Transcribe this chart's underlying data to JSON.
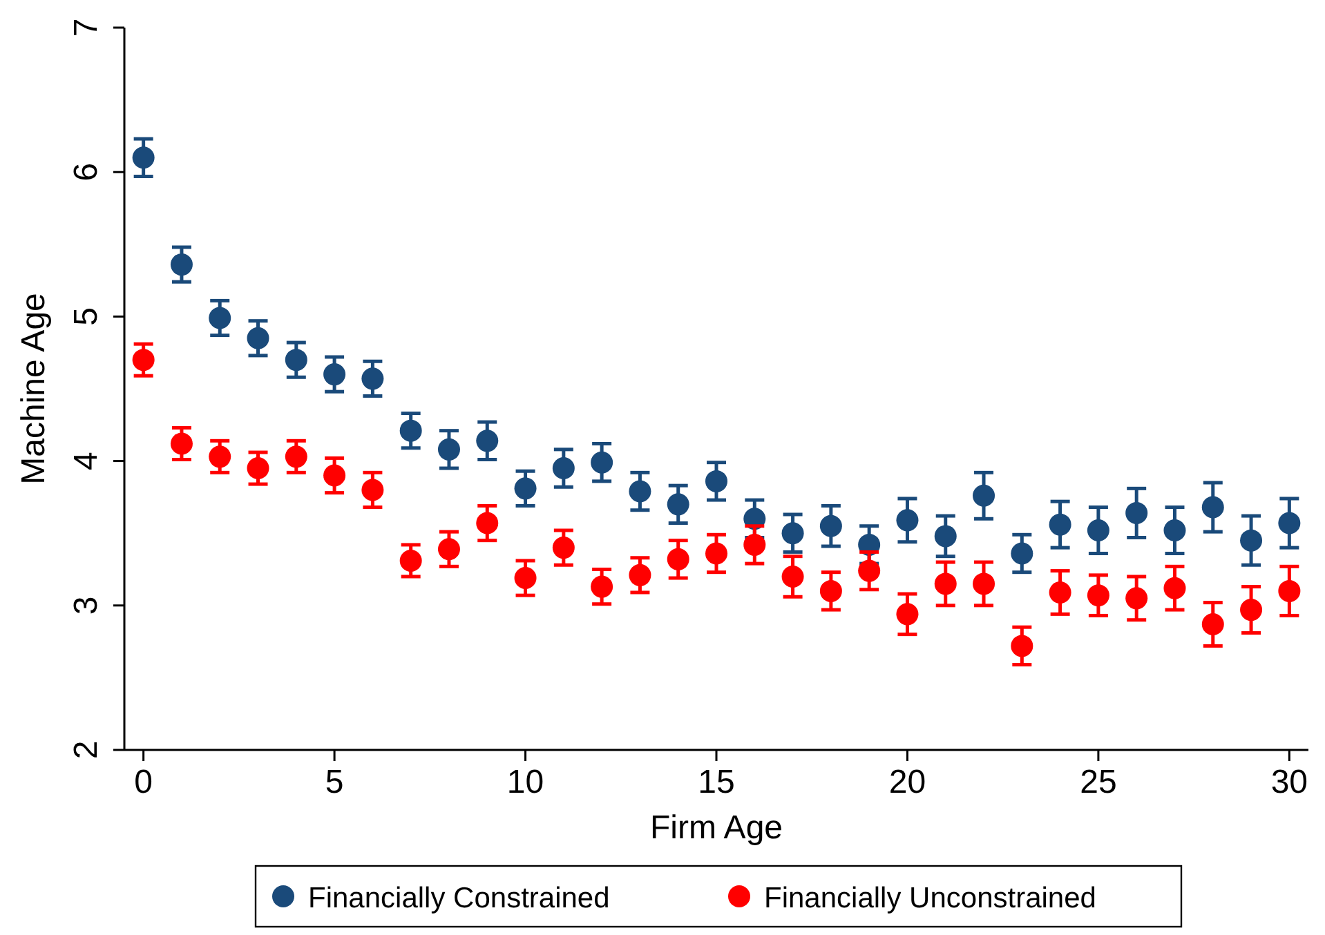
{
  "chart_data": {
    "type": "scatter",
    "xlabel": "Firm Age",
    "ylabel": "Machine Age",
    "x": [
      0,
      1,
      2,
      3,
      4,
      5,
      6,
      7,
      8,
      9,
      10,
      11,
      12,
      13,
      14,
      15,
      16,
      17,
      18,
      19,
      20,
      21,
      22,
      23,
      24,
      25,
      26,
      27,
      28,
      29,
      30
    ],
    "xlim": [
      -0.5,
      30.5
    ],
    "xticks": [
      0,
      5,
      10,
      15,
      20,
      25,
      30
    ],
    "ylim": [
      2,
      7
    ],
    "yticks": [
      2,
      3,
      4,
      5,
      6,
      7
    ],
    "grid": false,
    "legend": "bottom",
    "marker": "circle",
    "series": [
      {
        "name": "Financially Constrained",
        "color": "#1a4a7a",
        "values": [
          6.1,
          5.36,
          4.99,
          4.85,
          4.7,
          4.6,
          4.57,
          4.21,
          4.08,
          4.14,
          3.81,
          3.95,
          3.99,
          3.79,
          3.7,
          3.86,
          3.6,
          3.5,
          3.55,
          3.42,
          3.59,
          3.48,
          3.76,
          3.36,
          3.56,
          3.52,
          3.64,
          3.52,
          3.68,
          3.45,
          3.57
        ],
        "errors": [
          0.13,
          0.12,
          0.12,
          0.12,
          0.12,
          0.12,
          0.12,
          0.12,
          0.13,
          0.13,
          0.12,
          0.13,
          0.13,
          0.13,
          0.13,
          0.13,
          0.13,
          0.13,
          0.14,
          0.13,
          0.15,
          0.14,
          0.16,
          0.13,
          0.16,
          0.16,
          0.17,
          0.16,
          0.17,
          0.17,
          0.17
        ]
      },
      {
        "name": "Financially Unconstrained",
        "color": "#ff0000",
        "values": [
          4.7,
          4.12,
          4.03,
          3.95,
          4.03,
          3.9,
          3.8,
          3.31,
          3.39,
          3.57,
          3.19,
          3.4,
          3.13,
          3.21,
          3.32,
          3.36,
          3.42,
          3.2,
          3.1,
          3.24,
          2.94,
          3.15,
          3.15,
          2.72,
          3.09,
          3.07,
          3.05,
          3.12,
          2.87,
          2.97,
          3.1
        ],
        "errors": [
          0.11,
          0.11,
          0.11,
          0.11,
          0.11,
          0.12,
          0.12,
          0.11,
          0.12,
          0.12,
          0.12,
          0.12,
          0.12,
          0.12,
          0.13,
          0.13,
          0.13,
          0.14,
          0.13,
          0.13,
          0.14,
          0.15,
          0.15,
          0.13,
          0.15,
          0.14,
          0.15,
          0.15,
          0.15,
          0.16,
          0.17
        ]
      }
    ]
  }
}
